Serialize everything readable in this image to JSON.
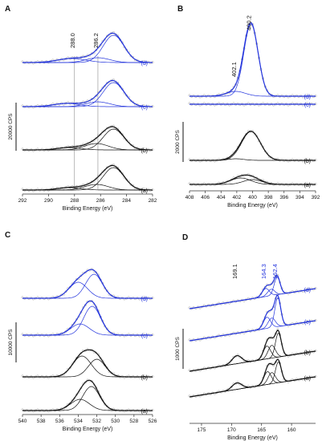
{
  "colors": {
    "black": "#111111",
    "blue": "#2233dd",
    "raw": "#8a8a8a"
  },
  "chart_data": [
    {
      "panel": "A",
      "type": "line",
      "xlabel": "Binding Energy (eV)",
      "xlim": [
        292,
        282
      ],
      "xticks": [
        292,
        290,
        288,
        286,
        284,
        282
      ],
      "scalebar": "20000 CPS",
      "vlines": [
        288.0,
        286.2
      ],
      "annotations": [
        {
          "text": "288.0",
          "x": 288.0
        },
        {
          "text": "286.2",
          "x": 286.2
        }
      ],
      "series": [
        {
          "name": "(a)",
          "color": "black",
          "peaks": [
            [
              285.0,
              28,
              0.8
            ],
            [
              286.3,
              7,
              0.9
            ],
            [
              288.4,
              3,
              0.9
            ]
          ]
        },
        {
          "name": "(b)",
          "color": "black",
          "peaks": [
            [
              285.0,
              26,
              0.8
            ],
            [
              286.3,
              8,
              0.9
            ],
            [
              288.4,
              3,
              0.9
            ]
          ]
        },
        {
          "name": "(c)",
          "color": "blue",
          "peaks": [
            [
              285.0,
              30,
              0.8
            ],
            [
              286.2,
              6,
              0.9
            ],
            [
              288.6,
              4,
              1.0
            ]
          ]
        },
        {
          "name": "(d)",
          "color": "blue",
          "peaks": [
            [
              285.0,
              34,
              0.8
            ],
            [
              286.2,
              6,
              0.9
            ],
            [
              288.2,
              5,
              1.1
            ]
          ]
        }
      ]
    },
    {
      "panel": "B",
      "type": "line",
      "xlabel": "Binding Energy (eV)",
      "xlim": [
        408,
        392
      ],
      "xticks": [
        408,
        406,
        404,
        402,
        400,
        398,
        396,
        394,
        392
      ],
      "scalebar": "2000 CPS",
      "annotations": [
        {
          "text": "400.2",
          "x": 400.2
        },
        {
          "text": "402.1",
          "x": 402.1
        }
      ],
      "series": [
        {
          "name": "(a)",
          "color": "black",
          "peaks": [
            [
              401.5,
              8,
              1.3
            ],
            [
              400.0,
              6,
              1.2
            ]
          ]
        },
        {
          "name": "(b)",
          "color": "black",
          "peaks": [
            [
              400.2,
              36,
              1.2
            ],
            [
              402.1,
              2,
              1.0
            ]
          ]
        },
        {
          "name": "(c)",
          "color": "blue",
          "peaks": []
        },
        {
          "name": "(d)",
          "color": "blue",
          "peaks": [
            [
              400.2,
              90,
              0.9
            ],
            [
              402.1,
              6,
              1.2
            ]
          ]
        }
      ]
    },
    {
      "panel": "C",
      "type": "line",
      "xlabel": "Binding Energy (eV)",
      "xlim": [
        540,
        526
      ],
      "xticks": [
        540,
        538,
        536,
        534,
        532,
        530,
        528,
        526
      ],
      "scalebar": "10000 CPS",
      "series": [
        {
          "name": "(a)",
          "color": "black",
          "peaks": [
            [
              533.8,
              14,
              1.0
            ],
            [
              532.6,
              30,
              0.9
            ]
          ]
        },
        {
          "name": "(b)",
          "color": "black",
          "peaks": [
            [
              533.6,
              26,
              1.0
            ],
            [
              532.0,
              22,
              0.9
            ]
          ]
        },
        {
          "name": "(c)",
          "color": "blue",
          "peaks": [
            [
              533.8,
              14,
              1.0
            ],
            [
              532.5,
              36,
              0.9
            ]
          ]
        },
        {
          "name": "(d)",
          "color": "blue",
          "peaks": [
            [
              534.0,
              20,
              1.0
            ],
            [
              532.3,
              30,
              0.9
            ]
          ]
        }
      ]
    },
    {
      "panel": "D",
      "type": "line",
      "xlabel": "Binding Energy (eV)",
      "xlim": [
        177,
        156
      ],
      "xticks": [
        175,
        170,
        165,
        160
      ],
      "scalebar": "1000 CPS",
      "annotations": [
        {
          "text": "169.1",
          "x": 169.1
        },
        {
          "text": "164.3",
          "x": 164.3
        },
        {
          "text": "162.4",
          "x": 162.4
        }
      ],
      "series": [
        {
          "name": "(a)",
          "color": "black",
          "peaks": [
            [
              169.1,
              8,
              0.8
            ],
            [
              164.0,
              16,
              0.6
            ],
            [
              163.3,
              14,
              0.6
            ],
            [
              162.2,
              26,
              0.5
            ]
          ]
        },
        {
          "name": "(b)",
          "color": "black",
          "peaks": [
            [
              169.1,
              10,
              0.8
            ],
            [
              164.1,
              16,
              0.6
            ],
            [
              163.3,
              16,
              0.6
            ],
            [
              162.2,
              30,
              0.5
            ]
          ]
        },
        {
          "name": "(c)",
          "color": "blue",
          "peaks": [
            [
              164.1,
              14,
              0.6
            ],
            [
              163.3,
              12,
              0.6
            ],
            [
              162.3,
              36,
              0.5
            ]
          ]
        },
        {
          "name": "(d)",
          "color": "blue",
          "peaks": [
            [
              164.3,
              10,
              0.6
            ],
            [
              163.4,
              8,
              0.6
            ],
            [
              162.4,
              22,
              0.5
            ]
          ]
        }
      ]
    }
  ]
}
